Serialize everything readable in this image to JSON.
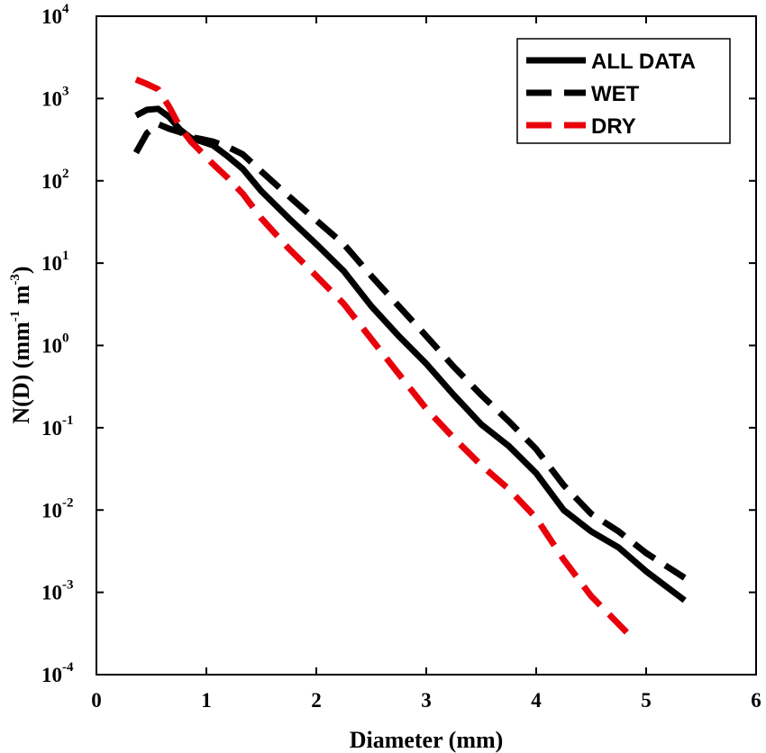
{
  "chart_data": {
    "type": "line",
    "xlabel": "Diameter (mm)",
    "ylabel_base": "N(D) (mm",
    "ylabel_exp1": "-1",
    "ylabel_mid": " m",
    "ylabel_exp2": "-3",
    "ylabel_end": ")",
    "xlim": [
      0,
      6
    ],
    "ylim": [
      0.0001,
      10000
    ],
    "yscale": "log",
    "grid": false,
    "legend_position": "top-right",
    "x_ticks": [
      {
        "value": 0,
        "label": "0"
      },
      {
        "value": 1,
        "label": "1"
      },
      {
        "value": 2,
        "label": "2"
      },
      {
        "value": 3,
        "label": "3"
      },
      {
        "value": 4,
        "label": "4"
      },
      {
        "value": 5,
        "label": "5"
      },
      {
        "value": 6,
        "label": "6"
      }
    ],
    "y_ticks": [
      {
        "value": 0.0001,
        "base": "10",
        "exp": "-4"
      },
      {
        "value": 0.001,
        "base": "10",
        "exp": "-3"
      },
      {
        "value": 0.01,
        "base": "10",
        "exp": "-2"
      },
      {
        "value": 0.1,
        "base": "10",
        "exp": "-1"
      },
      {
        "value": 1,
        "base": "10",
        "exp": "0"
      },
      {
        "value": 10,
        "base": "10",
        "exp": "1"
      },
      {
        "value": 100,
        "base": "10",
        "exp": "2"
      },
      {
        "value": 1000,
        "base": "10",
        "exp": "3"
      },
      {
        "value": 10000,
        "base": "10",
        "exp": "4"
      }
    ],
    "series": [
      {
        "name": "ALL DATA",
        "color": "#000000",
        "style": "solid",
        "x": [
          0.36,
          0.46,
          0.56,
          0.66,
          0.76,
          0.86,
          0.96,
          1.06,
          1.19,
          1.33,
          1.5,
          1.75,
          2.0,
          2.25,
          2.5,
          2.75,
          3.0,
          3.25,
          3.5,
          3.75,
          4.0,
          4.25,
          4.5,
          4.75,
          5.0,
          5.35
        ],
        "y": [
          620,
          730,
          750,
          600,
          420,
          330,
          300,
          270,
          200,
          140,
          75,
          35,
          17,
          8,
          3,
          1.3,
          0.6,
          0.25,
          0.11,
          0.06,
          0.028,
          0.01,
          0.0055,
          0.0035,
          0.0018,
          0.0008
        ]
      },
      {
        "name": "WET",
        "color": "#000000",
        "style": "dashed",
        "x": [
          0.36,
          0.46,
          0.56,
          0.66,
          0.76,
          0.86,
          0.96,
          1.06,
          1.19,
          1.33,
          1.5,
          1.75,
          2.0,
          2.25,
          2.5,
          2.75,
          3.0,
          3.25,
          3.5,
          3.75,
          4.0,
          4.25,
          4.5,
          4.75,
          5.0,
          5.35
        ],
        "y": [
          220,
          380,
          490,
          430,
          390,
          340,
          320,
          300,
          260,
          210,
          130,
          65,
          33,
          17,
          7,
          3,
          1.3,
          0.55,
          0.25,
          0.12,
          0.055,
          0.02,
          0.009,
          0.0055,
          0.003,
          0.0015
        ]
      },
      {
        "name": "DRY",
        "color": "#e8000b",
        "style": "dashed",
        "x": [
          0.36,
          0.46,
          0.56,
          0.66,
          0.76,
          0.86,
          0.96,
          1.06,
          1.19,
          1.33,
          1.5,
          1.75,
          2.0,
          2.25,
          2.5,
          2.75,
          3.0,
          3.25,
          3.5,
          3.75,
          4.0,
          4.25,
          4.5,
          4.85
        ],
        "y": [
          1700,
          1500,
          1300,
          800,
          450,
          300,
          220,
          160,
          110,
          70,
          35,
          15,
          7,
          3.2,
          1.2,
          0.45,
          0.17,
          0.075,
          0.035,
          0.018,
          0.008,
          0.0025,
          0.0009,
          0.0003
        ]
      }
    ]
  }
}
